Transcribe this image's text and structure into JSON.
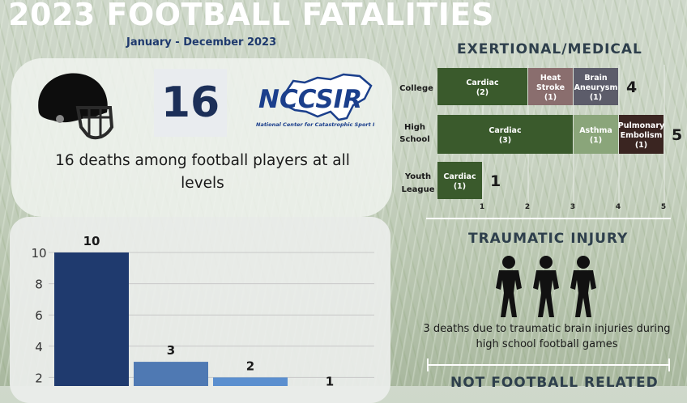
{
  "title": "2023 FOOTBALL FATALITIES",
  "date_range": "January - December 2023",
  "summary": {
    "total_number": "16",
    "text": "16 deaths among football players at all levels",
    "logo": {
      "name": "NCCSIR",
      "subtitle": "National Center for Catastrophic Sport Injury Research"
    }
  },
  "sections": {
    "exertional": "EXERTIONAL/MEDICAL",
    "traumatic": "TRAUMATIC INJURY",
    "traumatic_text": "3 deaths due to traumatic brain injuries during high school football games",
    "not_football": "NOT FOOTBALL RELATED"
  },
  "colors": {
    "navy": "#1f3a6e",
    "mid_blue": "#4f79b3",
    "light_blue": "#5b8fcf",
    "dark_green": "#3a5a2c",
    "light_green": "#8aa57a",
    "mauve": "#8a6e6e",
    "slate": "#5c5c6a",
    "dark_brown": "#3a2521"
  },
  "chart_data": [
    {
      "type": "bar",
      "title": "",
      "categories": [
        "",
        "",
        "",
        ""
      ],
      "values": [
        10,
        3,
        2,
        1
      ],
      "ylim": [
        0,
        10
      ],
      "yticks": [
        2,
        4,
        6,
        8,
        10
      ],
      "colors": [
        "#1f3a6e",
        "#4f79b3",
        "#5b8fcf",
        "#9db8d8"
      ],
      "grid": true
    },
    {
      "type": "bar",
      "orientation": "horizontal-stacked",
      "title": "EXERTIONAL/MEDICAL",
      "categories": [
        "College",
        "High School",
        "Youth League"
      ],
      "totals": [
        4,
        5,
        1
      ],
      "xticks": [
        1,
        2,
        3,
        4,
        5
      ],
      "xlim": [
        0,
        5
      ],
      "segments": [
        {
          "category": "College",
          "label": "Cardiac",
          "count": "(2)",
          "value": 2,
          "color": "#3a5a2c"
        },
        {
          "category": "College",
          "label": "Heat Stroke",
          "count": "(1)",
          "value": 1,
          "color": "#8a6e6e"
        },
        {
          "category": "College",
          "label": "Brain Aneurysm",
          "count": "(1)",
          "value": 1,
          "color": "#5c5c6a"
        },
        {
          "category": "High School",
          "label": "Cardiac",
          "count": "(3)",
          "value": 3,
          "color": "#3a5a2c"
        },
        {
          "category": "High School",
          "label": "Asthma",
          "count": "(1)",
          "value": 1,
          "color": "#8aa57a"
        },
        {
          "category": "High School",
          "label": "Pulmonary Embolism",
          "count": "(1)",
          "value": 1,
          "color": "#3a2521"
        },
        {
          "category": "Youth League",
          "label": "Cardiac",
          "count": "(1)",
          "value": 1,
          "color": "#3a5a2c"
        }
      ]
    }
  ]
}
